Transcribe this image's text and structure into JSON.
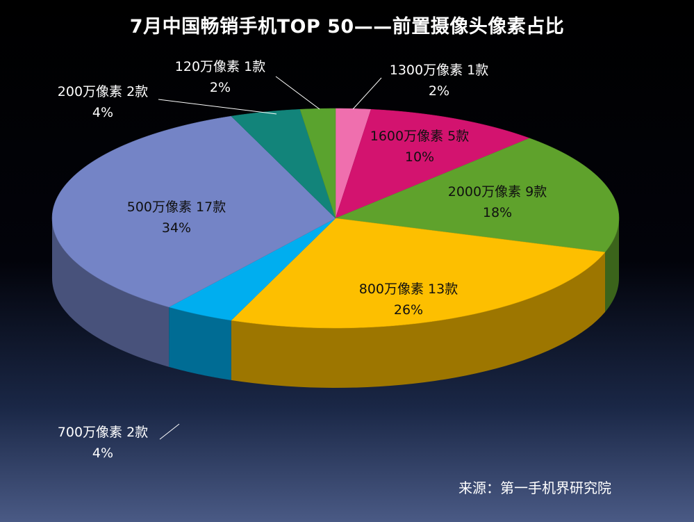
{
  "chart_data": {
    "type": "pie",
    "title": "7月中国畅销手机TOP 50——前置摄像头像素占比",
    "source": "来源：第一手机界研究院",
    "slices": [
      {
        "label": "1300万像素 1款",
        "percent_label": "2%",
        "value": 2,
        "color": "#ef6fae"
      },
      {
        "label": "1600万像素 5款",
        "percent_label": "10%",
        "value": 10,
        "color": "#d3136f"
      },
      {
        "label": "2000万像素 9款",
        "percent_label": "18%",
        "value": 18,
        "color": "#5fa22c"
      },
      {
        "label": "800万像素 13款",
        "percent_label": "26%",
        "value": 26,
        "color": "#fdbf00"
      },
      {
        "label": "700万像素 2款",
        "percent_label": "4%",
        "value": 4,
        "color": "#00aeef"
      },
      {
        "label": "500万像素 17款",
        "percent_label": "34%",
        "value": 34,
        "color": "#7484c6"
      },
      {
        "label": "200万像素 2款",
        "percent_label": "4%",
        "value": 4,
        "color": "#12847a"
      },
      {
        "label": "120万像素 1款",
        "percent_label": "2%",
        "value": 2,
        "color": "#5aa32e"
      }
    ]
  }
}
